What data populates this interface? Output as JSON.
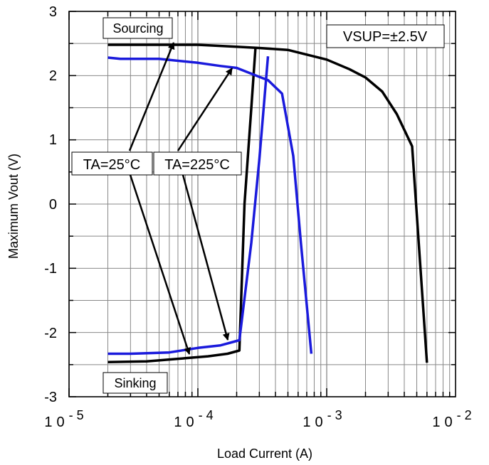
{
  "chart_data": {
    "type": "line",
    "xlabel": "Load Current (A)",
    "ylabel": "Maximum Vout (V)",
    "xscale": "log",
    "xlim": [
      1e-05,
      0.01
    ],
    "ylim": [
      -3,
      3
    ],
    "grid": true,
    "x_ticks": [
      {
        "value": 1e-05,
        "base": "10",
        "exp": "- 5"
      },
      {
        "value": 0.0001,
        "base": "10",
        "exp": "- 4"
      },
      {
        "value": 0.001,
        "base": "10",
        "exp": "- 3"
      },
      {
        "value": 0.01,
        "base": "10",
        "exp": "- 2"
      }
    ],
    "y_ticks": [
      "-3",
      "-2",
      "-1",
      "0",
      "1",
      "2",
      "3"
    ],
    "series": [
      {
        "color": "#000000",
        "segments": [
          {
            "x": [
              2e-05,
              5e-05,
              0.0001,
              0.0002,
              0.0003,
              0.0005,
              0.001,
              0.0015,
              0.002,
              0.0027,
              0.0035,
              0.0046,
              0.006
            ],
            "y": [
              2.48,
              2.48,
              2.48,
              2.45,
              2.43,
              2.4,
              2.25,
              2.1,
              1.97,
              1.75,
              1.4,
              0.9,
              -2.47
            ]
          },
          {
            "x": [
              2e-05,
              4e-05,
              8e-05,
              0.00012,
              0.00017,
              0.00021,
              0.00023,
              0.00026,
              0.00028
            ],
            "y": [
              -2.46,
              -2.45,
              -2.4,
              -2.37,
              -2.33,
              -2.28,
              0.0,
              1.5,
              2.43
            ]
          }
        ]
      },
      {
        "color": "#1a1adc",
        "segments": [
          {
            "x": [
              2e-05,
              2.5e-05,
              5e-05,
              0.0001,
              0.00015,
              0.0002,
              0.0003,
              0.00035,
              0.00045,
              0.00055,
              0.00063,
              0.00076
            ],
            "y": [
              2.28,
              2.26,
              2.26,
              2.2,
              2.15,
              2.12,
              1.98,
              1.93,
              1.72,
              0.75,
              -0.6,
              -2.33
            ]
          },
          {
            "x": [
              2e-05,
              3e-05,
              6e-05,
              0.0001,
              0.00015,
              0.00021,
              0.00026,
              0.0003,
              0.00035
            ],
            "y": [
              -2.33,
              -2.33,
              -2.31,
              -2.24,
              -2.2,
              -2.12,
              -0.6,
              0.7,
              2.3
            ]
          }
        ]
      }
    ],
    "annotations": {
      "sourcing": {
        "text": "Sourcing"
      },
      "sinking": {
        "text": "Sinking"
      },
      "vsup": {
        "text": "VSUP=±2.5V"
      },
      "ta25": {
        "text": "TA=25°C"
      },
      "ta225": {
        "text": "TA=225°C"
      }
    }
  }
}
